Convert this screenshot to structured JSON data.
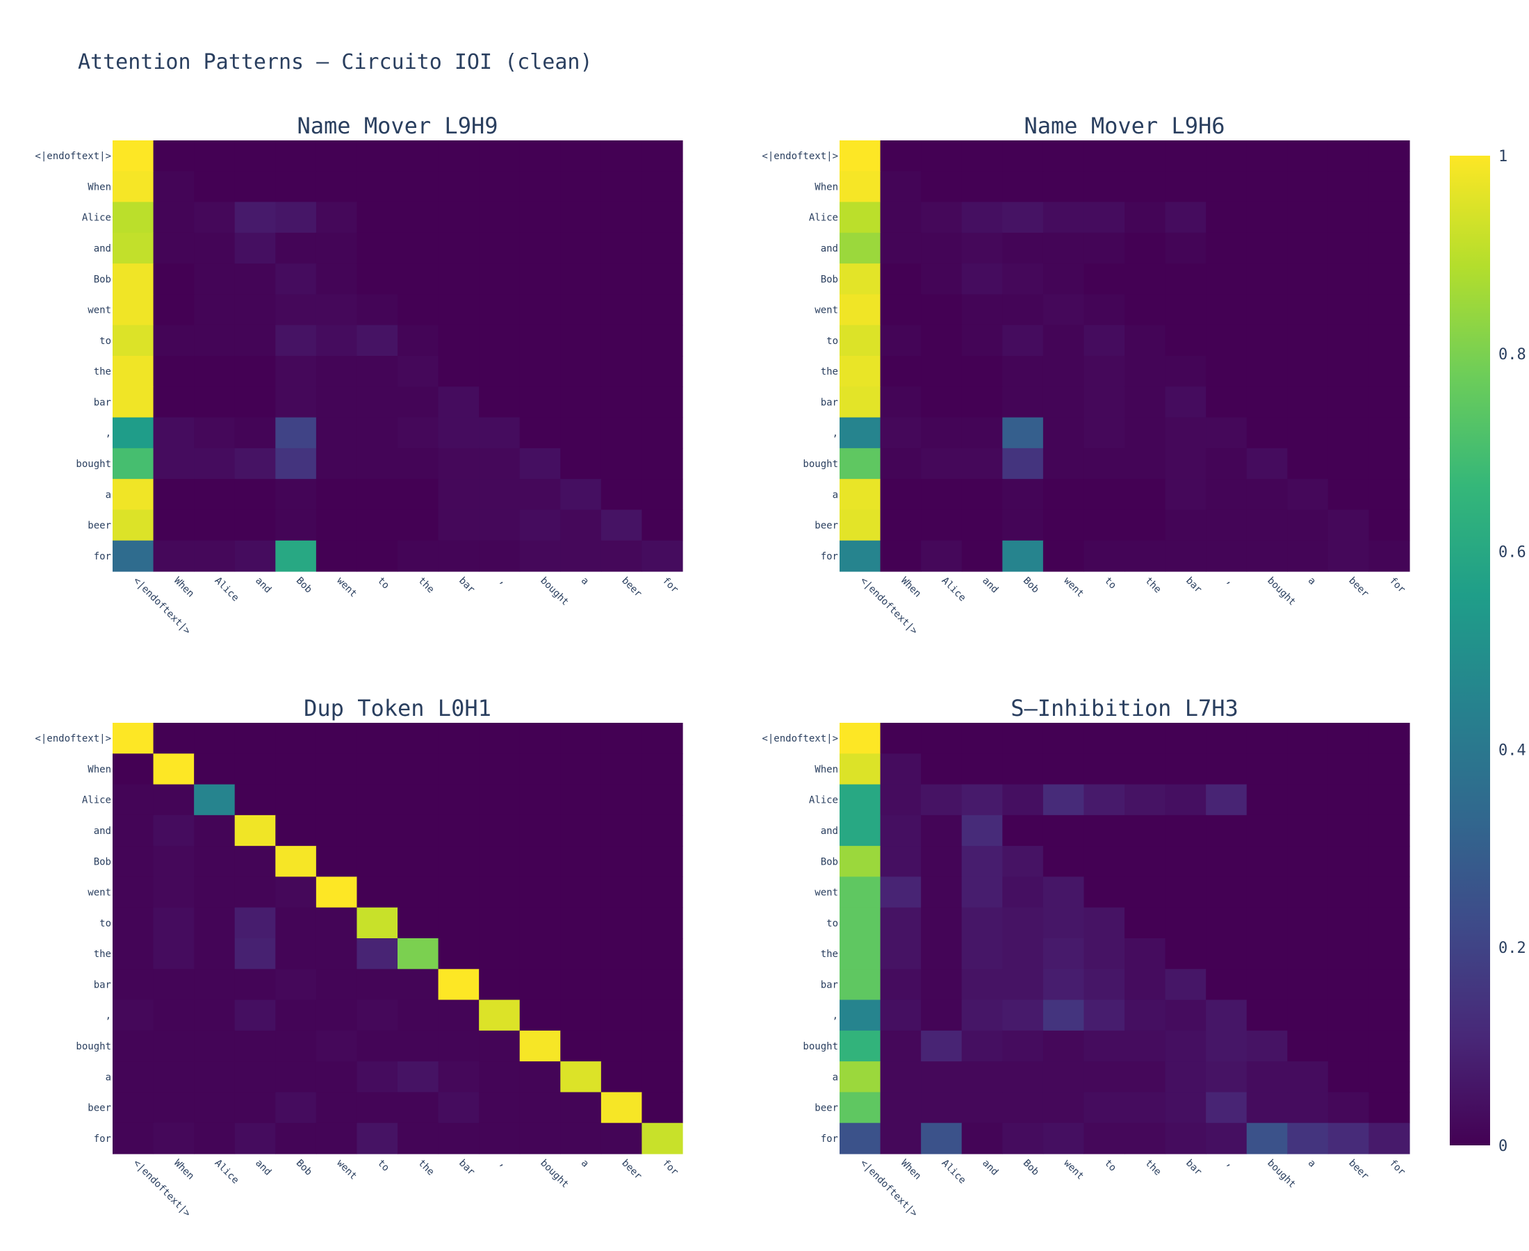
{
  "title": "Attention Patterns — Circuito IOI (clean)",
  "chart_data": {
    "type": "heatmap",
    "colorscale": "Viridis",
    "zmin": 0,
    "zmax": 1,
    "colorbar": {
      "ticks": [
        0,
        0.2,
        0.4,
        0.6,
        0.8,
        1
      ],
      "tick_labels": [
        "0",
        "0.2",
        "0.4",
        "0.6",
        "0.8",
        "1"
      ]
    },
    "tokens": [
      "<|endoftext|>",
      "When",
      "Alice",
      "and",
      "Bob",
      "went",
      "to",
      "the",
      "bar",
      ",",
      "bought",
      "a",
      "beer",
      "for"
    ],
    "panels": [
      {
        "title": "Name Mover L9H9",
        "z": [
          [
            1.0,
            0,
            0,
            0,
            0,
            0,
            0,
            0,
            0,
            0,
            0,
            0,
            0,
            0
          ],
          [
            0.99,
            0.01,
            0,
            0,
            0,
            0,
            0,
            0,
            0,
            0,
            0,
            0,
            0,
            0
          ],
          [
            0.9,
            0.01,
            0.02,
            0.07,
            0.06,
            0.02,
            0,
            0,
            0,
            0,
            0,
            0,
            0,
            0
          ],
          [
            0.91,
            0.01,
            0.01,
            0.04,
            0.01,
            0.01,
            0,
            0,
            0,
            0,
            0,
            0,
            0,
            0
          ],
          [
            0.98,
            0,
            0.01,
            0.01,
            0.03,
            0.01,
            0,
            0,
            0,
            0,
            0,
            0,
            0,
            0
          ],
          [
            0.98,
            0,
            0.01,
            0.01,
            0.02,
            0.02,
            0.01,
            0,
            0,
            0,
            0,
            0,
            0,
            0
          ],
          [
            0.95,
            0.01,
            0.01,
            0.01,
            0.05,
            0.03,
            0.05,
            0.01,
            0,
            0,
            0,
            0,
            0,
            0
          ],
          [
            0.98,
            0,
            0,
            0,
            0.02,
            0.01,
            0.01,
            0.02,
            0,
            0,
            0,
            0,
            0,
            0
          ],
          [
            0.98,
            0,
            0,
            0,
            0.02,
            0.01,
            0.01,
            0.01,
            0.03,
            0,
            0,
            0,
            0,
            0
          ],
          [
            0.55,
            0.03,
            0.02,
            0.01,
            0.2,
            0.01,
            0.01,
            0.02,
            0.03,
            0.03,
            0,
            0,
            0,
            0
          ],
          [
            0.7,
            0.03,
            0.03,
            0.05,
            0.15,
            0.01,
            0.01,
            0.01,
            0.02,
            0.02,
            0.04,
            0,
            0,
            0
          ],
          [
            0.98,
            0,
            0,
            0,
            0.01,
            0,
            0,
            0,
            0.02,
            0.02,
            0.02,
            0.04,
            0,
            0
          ],
          [
            0.95,
            0,
            0,
            0,
            0.01,
            0,
            0,
            0,
            0.02,
            0.02,
            0.03,
            0.02,
            0.05,
            0
          ],
          [
            0.35,
            0.02,
            0.02,
            0.03,
            0.6,
            0,
            0,
            0.01,
            0.01,
            0.01,
            0.02,
            0.02,
            0.02,
            0.03
          ]
        ]
      },
      {
        "title": "Name Mover L9H6",
        "z": [
          [
            1.0,
            0,
            0,
            0,
            0,
            0,
            0,
            0,
            0,
            0,
            0,
            0,
            0,
            0
          ],
          [
            0.99,
            0.01,
            0,
            0,
            0,
            0,
            0,
            0,
            0,
            0,
            0,
            0,
            0,
            0
          ],
          [
            0.9,
            0.01,
            0.02,
            0.04,
            0.05,
            0.03,
            0.03,
            0.01,
            0.03,
            0,
            0,
            0,
            0,
            0
          ],
          [
            0.85,
            0.01,
            0.01,
            0.02,
            0.01,
            0.01,
            0.01,
            0,
            0.01,
            0,
            0,
            0,
            0,
            0
          ],
          [
            0.96,
            0,
            0.01,
            0.03,
            0.02,
            0.01,
            0,
            0,
            0,
            0,
            0,
            0,
            0,
            0
          ],
          [
            0.98,
            0,
            0,
            0.01,
            0.01,
            0.02,
            0.01,
            0,
            0,
            0,
            0,
            0,
            0,
            0
          ],
          [
            0.95,
            0.01,
            0,
            0.01,
            0.03,
            0.01,
            0.03,
            0.01,
            0,
            0,
            0,
            0,
            0,
            0
          ],
          [
            0.97,
            0,
            0,
            0,
            0.01,
            0.01,
            0.02,
            0.01,
            0.01,
            0,
            0,
            0,
            0,
            0
          ],
          [
            0.96,
            0.01,
            0,
            0,
            0.01,
            0.01,
            0.02,
            0.01,
            0.03,
            0,
            0,
            0,
            0,
            0
          ],
          [
            0.45,
            0.02,
            0.01,
            0.01,
            0.3,
            0.01,
            0.02,
            0.01,
            0.02,
            0.02,
            0,
            0,
            0,
            0
          ],
          [
            0.75,
            0.01,
            0.02,
            0.02,
            0.15,
            0.01,
            0.01,
            0.01,
            0.02,
            0.01,
            0.03,
            0,
            0,
            0
          ],
          [
            0.97,
            0,
            0,
            0,
            0.01,
            0,
            0,
            0,
            0.02,
            0.01,
            0.01,
            0.02,
            0,
            0
          ],
          [
            0.96,
            0,
            0,
            0,
            0.01,
            0,
            0,
            0,
            0.01,
            0.01,
            0.01,
            0.01,
            0.02,
            0
          ],
          [
            0.45,
            0,
            0.02,
            0,
            0.45,
            0,
            0.01,
            0.01,
            0.01,
            0.01,
            0.01,
            0.01,
            0.02,
            0.01
          ]
        ]
      },
      {
        "title": "Dup Token L0H1",
        "z": [
          [
            1.0,
            0,
            0,
            0,
            0,
            0,
            0,
            0,
            0,
            0,
            0,
            0,
            0,
            0
          ],
          [
            0.0,
            1.0,
            0,
            0,
            0,
            0,
            0,
            0,
            0,
            0,
            0,
            0,
            0,
            0
          ],
          [
            0.01,
            0.01,
            0.45,
            0,
            0,
            0,
            0,
            0,
            0,
            0,
            0,
            0,
            0,
            0
          ],
          [
            0.01,
            0.03,
            0.01,
            0.98,
            0,
            0,
            0,
            0,
            0,
            0,
            0,
            0,
            0,
            0
          ],
          [
            0.01,
            0.02,
            0.01,
            0.01,
            0.99,
            0,
            0,
            0,
            0,
            0,
            0,
            0,
            0,
            0
          ],
          [
            0.01,
            0.02,
            0.01,
            0.01,
            0.02,
            1.0,
            0,
            0,
            0,
            0,
            0,
            0,
            0,
            0
          ],
          [
            0.01,
            0.03,
            0.01,
            0.08,
            0.01,
            0.01,
            0.92,
            0,
            0,
            0,
            0,
            0,
            0,
            0
          ],
          [
            0.01,
            0.03,
            0.01,
            0.09,
            0.01,
            0.01,
            0.1,
            0.8,
            0,
            0,
            0,
            0,
            0,
            0
          ],
          [
            0.01,
            0.01,
            0.01,
            0.01,
            0.02,
            0.01,
            0.01,
            0.01,
            1.0,
            0,
            0,
            0,
            0,
            0
          ],
          [
            0.02,
            0.01,
            0.01,
            0.04,
            0.01,
            0.01,
            0.02,
            0.01,
            0.01,
            0.95,
            0,
            0,
            0,
            0
          ],
          [
            0.01,
            0.01,
            0.01,
            0.01,
            0.01,
            0.02,
            0.01,
            0.01,
            0.01,
            0.01,
            0.99,
            0,
            0,
            0
          ],
          [
            0.01,
            0.01,
            0.01,
            0.01,
            0.01,
            0.01,
            0.03,
            0.05,
            0.02,
            0.01,
            0.01,
            0.95,
            0,
            0
          ],
          [
            0.01,
            0.01,
            0.01,
            0.01,
            0.03,
            0.01,
            0.01,
            0.01,
            0.03,
            0.01,
            0.01,
            0.01,
            0.99,
            0
          ],
          [
            0.01,
            0.02,
            0.01,
            0.03,
            0.01,
            0.01,
            0.05,
            0.01,
            0.01,
            0.01,
            0.01,
            0.01,
            0.01,
            0.92
          ]
        ]
      },
      {
        "title": "S–Inhibition L7H3",
        "z": [
          [
            1.0,
            0,
            0,
            0,
            0,
            0,
            0,
            0,
            0,
            0,
            0,
            0,
            0,
            0
          ],
          [
            0.95,
            0.03,
            0,
            0,
            0,
            0,
            0,
            0,
            0,
            0,
            0,
            0,
            0,
            0
          ],
          [
            0.6,
            0.03,
            0.05,
            0.07,
            0.04,
            0.12,
            0.07,
            0.05,
            0.04,
            0.1,
            0,
            0,
            0,
            0
          ],
          [
            0.6,
            0.04,
            0.01,
            0.12,
            0,
            0,
            0,
            0,
            0,
            0,
            0,
            0,
            0,
            0
          ],
          [
            0.85,
            0.04,
            0.01,
            0.08,
            0.05,
            0,
            0,
            0,
            0,
            0,
            0,
            0,
            0,
            0
          ],
          [
            0.75,
            0.1,
            0.01,
            0.08,
            0.04,
            0.06,
            0,
            0,
            0,
            0,
            0,
            0,
            0,
            0
          ],
          [
            0.75,
            0.05,
            0.01,
            0.06,
            0.05,
            0.06,
            0.05,
            0,
            0,
            0,
            0,
            0,
            0,
            0
          ],
          [
            0.75,
            0.05,
            0.01,
            0.06,
            0.05,
            0.07,
            0.05,
            0.03,
            0,
            0,
            0,
            0,
            0,
            0
          ],
          [
            0.75,
            0.03,
            0.01,
            0.05,
            0.05,
            0.08,
            0.06,
            0.03,
            0.06,
            0,
            0,
            0,
            0,
            0
          ],
          [
            0.45,
            0.04,
            0.01,
            0.06,
            0.07,
            0.15,
            0.08,
            0.04,
            0.03,
            0.06,
            0,
            0,
            0,
            0
          ],
          [
            0.65,
            0.02,
            0.1,
            0.04,
            0.03,
            0.02,
            0.03,
            0.03,
            0.04,
            0.06,
            0.05,
            0,
            0,
            0
          ],
          [
            0.85,
            0.02,
            0.02,
            0.02,
            0.02,
            0.02,
            0.02,
            0.02,
            0.04,
            0.05,
            0.03,
            0.03,
            0,
            0
          ],
          [
            0.75,
            0.02,
            0.02,
            0.02,
            0.02,
            0.02,
            0.03,
            0.03,
            0.04,
            0.1,
            0.03,
            0.03,
            0.02,
            0
          ],
          [
            0.25,
            0.02,
            0.25,
            0.01,
            0.03,
            0.04,
            0.02,
            0.02,
            0.03,
            0.04,
            0.25,
            0.15,
            0.12,
            0.07
          ]
        ]
      }
    ]
  }
}
